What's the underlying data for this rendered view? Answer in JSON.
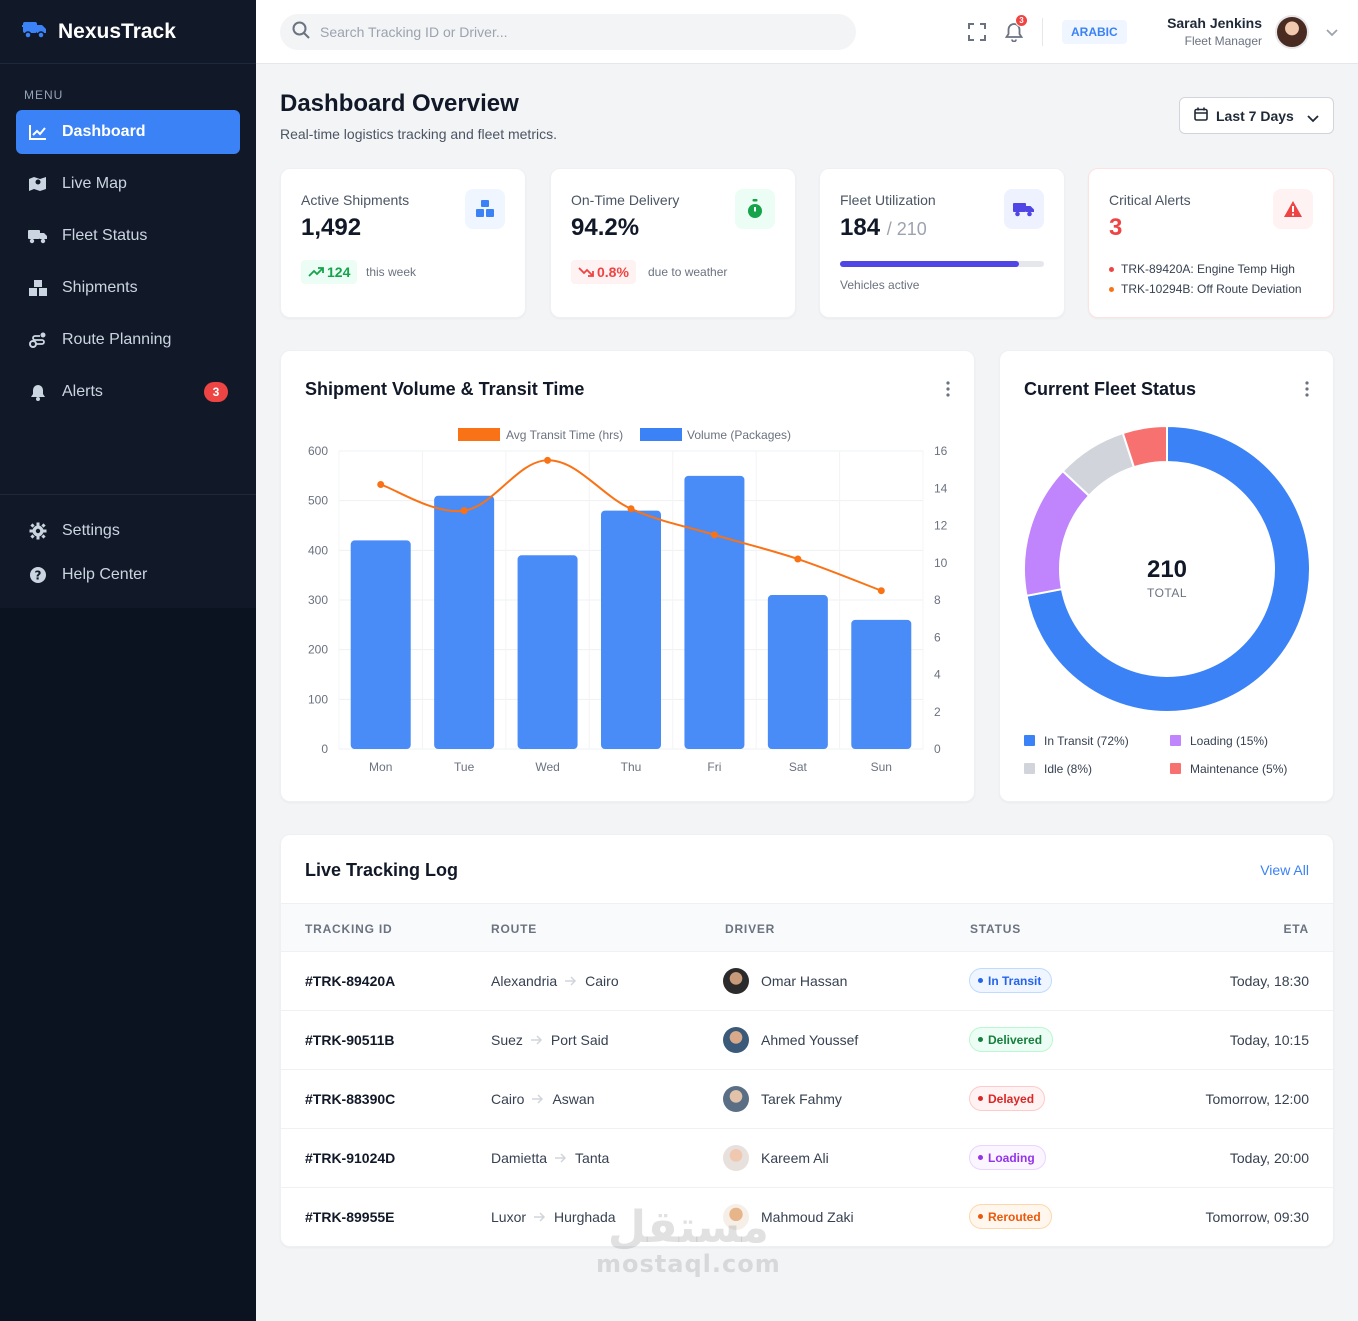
{
  "brand": {
    "name": "NexusTrack"
  },
  "sidebar": {
    "menu_label": "MENU",
    "items": [
      {
        "label": "Dashboard",
        "icon": "chart-line-icon"
      },
      {
        "label": "Live Map",
        "icon": "map-icon"
      },
      {
        "label": "Fleet Status",
        "icon": "truck-icon"
      },
      {
        "label": "Shipments",
        "icon": "boxes-icon"
      },
      {
        "label": "Route Planning",
        "icon": "route-icon"
      },
      {
        "label": "Alerts",
        "icon": "bell-icon",
        "badge": "3"
      }
    ],
    "bottom_items": [
      {
        "label": "Settings",
        "icon": "gear-icon"
      },
      {
        "label": "Help Center",
        "icon": "help-icon"
      }
    ]
  },
  "header": {
    "search_placeholder": "Search Tracking ID or Driver...",
    "notification_count": "3",
    "language": "ARABIC",
    "user_name": "Sarah Jenkins",
    "user_role": "Fleet Manager"
  },
  "page": {
    "title": "Dashboard Overview",
    "subtitle": "Real-time logistics tracking and fleet metrics.",
    "date_range": "Last 7 Days"
  },
  "stats": {
    "active_shipments": {
      "label": "Active Shipments",
      "value": "1,492",
      "change": "124",
      "note": "this week"
    },
    "on_time": {
      "label": "On-Time Delivery",
      "value": "94.2%",
      "change": "0.8%",
      "note": "due to weather"
    },
    "fleet_util": {
      "label": "Fleet Utilization",
      "value": "184",
      "total": "/ 210",
      "fraction": 0.876,
      "note": "Vehicles active"
    },
    "critical_alerts": {
      "label": "Critical Alerts",
      "value": "3",
      "alerts": [
        "TRK-89420A: Engine Temp High",
        "TRK-10294B: Off Route Deviation"
      ]
    }
  },
  "colors": {
    "primary": "#3b82f6",
    "orange": "#f97316",
    "purple": "#c084fc",
    "idle": "#d1d5db",
    "red": "#f87171"
  },
  "volume_chart": {
    "title": "Shipment Volume & Transit Time"
  },
  "fleet_chart": {
    "title": "Current Fleet Status",
    "total": "210",
    "total_label": "TOTAL"
  },
  "chart_data": [
    {
      "type": "bar",
      "title": "Shipment Volume & Transit Time",
      "categories": [
        "Mon",
        "Tue",
        "Wed",
        "Thu",
        "Fri",
        "Sat",
        "Sun"
      ],
      "series": [
        {
          "name": "Volume (Packages)",
          "type": "bar",
          "axis": "left",
          "values": [
            420,
            510,
            390,
            480,
            550,
            310,
            260
          ]
        },
        {
          "name": "Avg Transit Time (hrs)",
          "type": "line",
          "axis": "right",
          "values": [
            14.2,
            12.8,
            15.5,
            12.9,
            11.5,
            10.2,
            8.5
          ]
        }
      ],
      "y_left": {
        "range": [
          0,
          600
        ],
        "ticks": [
          0,
          100,
          200,
          300,
          400,
          500,
          600
        ]
      },
      "y_right": {
        "range": [
          0,
          16
        ],
        "ticks": [
          0,
          2,
          4,
          6,
          8,
          10,
          12,
          14,
          16
        ]
      },
      "legend": "top-center"
    },
    {
      "type": "pie",
      "title": "Current Fleet Status",
      "categories": [
        "In Transit (72%)",
        "Loading (15%)",
        "Idle (8%)",
        "Maintenance (5%)"
      ],
      "values": [
        72,
        15,
        8,
        5
      ],
      "colors": [
        "#3b82f6",
        "#c084fc",
        "#d1d5db",
        "#f87171"
      ],
      "legend": "bottom"
    }
  ],
  "table": {
    "title": "Live Tracking Log",
    "view_all": "View All",
    "headers": [
      "TRACKING ID",
      "ROUTE",
      "DRIVER",
      "STATUS",
      "ETA"
    ],
    "rows": [
      {
        "id": "#TRK-89420A",
        "from": "Alexandria",
        "to": "Cairo",
        "driver": "Omar Hassan",
        "status": "In Transit",
        "eta": "Today, 18:30"
      },
      {
        "id": "#TRK-90511B",
        "from": "Suez",
        "to": "Port Said",
        "driver": "Ahmed Youssef",
        "status": "Delivered",
        "eta": "Today, 10:15"
      },
      {
        "id": "#TRK-88390C",
        "from": "Cairo",
        "to": "Aswan",
        "driver": "Tarek Fahmy",
        "status": "Delayed",
        "eta": "Tomorrow, 12:00"
      },
      {
        "id": "#TRK-91024D",
        "from": "Damietta",
        "to": "Tanta",
        "driver": "Kareem Ali",
        "status": "Loading",
        "eta": "Today, 20:00"
      },
      {
        "id": "#TRK-89955E",
        "from": "Luxor",
        "to": "Hurghada",
        "driver": "Mahmoud Zaki",
        "status": "Rerouted",
        "eta": "Tomorrow, 09:30"
      }
    ]
  },
  "watermark": {
    "arabic": "مستقل",
    "latin": "mostaql.com"
  }
}
